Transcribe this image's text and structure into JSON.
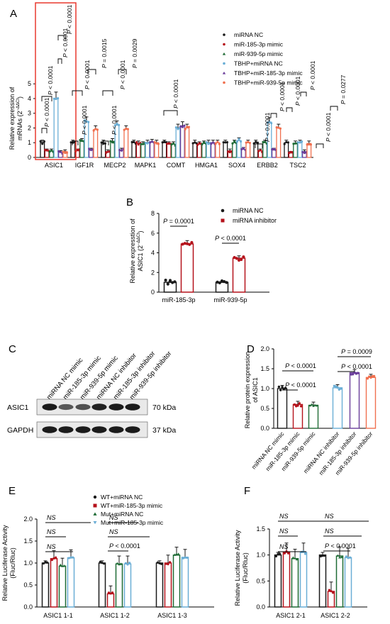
{
  "colors": {
    "black": "#1a1a1a",
    "red": "#b5121b",
    "green": "#1e6b35",
    "blue": "#6aaed6",
    "purple": "#6a3d9a",
    "orange": "#f0704f",
    "blotbg": "#e9e9e9",
    "band": "#1b1b1b",
    "highlight": "#e8392f"
  },
  "chart_data": [
    {
      "panel": "A",
      "type": "bar",
      "ylabel_line1": "Relative expression of",
      "ylabel_line2": "mRNAs (2",
      "ylabel_sup": "−ΔΔCt",
      "ylabel_close": ")",
      "ylim": [
        0,
        6
      ],
      "yticks": [
        "0",
        "1",
        "2",
        "3",
        "4",
        "5"
      ],
      "categories": [
        "ASIC1",
        "IGF1R",
        "MECP2",
        "MAPK1",
        "COMT",
        "HMGA1",
        "SOX4",
        "ERBB2",
        "TSC2"
      ],
      "series": [
        {
          "name": "miRNA NC",
          "values": [
            1,
            1,
            1,
            1,
            1,
            1,
            1,
            1,
            1
          ]
        },
        {
          "name": "miR-185-3p mimic",
          "values": [
            0.45,
            0.45,
            0.4,
            0.95,
            0.9,
            0.9,
            0.45,
            0.45,
            0.3
          ]
        },
        {
          "name": "miR-939-5p mimic",
          "values": [
            0.45,
            1.1,
            1.1,
            0.9,
            0.9,
            0.95,
            1.0,
            1.0,
            0.95
          ]
        },
        {
          "name": "TBHP+miRNA NC",
          "values": [
            4.0,
            2.45,
            2.2,
            1.0,
            2.0,
            1.0,
            1.15,
            2.4,
            1.0
          ]
        },
        {
          "name": "TBHP+miR-185-3p mimic",
          "values": [
            0.35,
            0.5,
            0.5,
            1.05,
            2.15,
            1.0,
            0.55,
            0.5,
            0.4
          ]
        },
        {
          "name": "TBHP+miR-939-5p mimic",
          "values": [
            0.4,
            1.9,
            1.9,
            1.0,
            2.0,
            1.0,
            1.0,
            2.0,
            0.95
          ]
        }
      ],
      "annotations": [
        {
          "group": 0,
          "labels": [
            "P < 0.0001",
            "P < 0.0001",
            "P < 0.0001",
            "P < 0.0001"
          ]
        },
        {
          "group": 1,
          "labels": [
            "P < 0.0001",
            "P < 0.0001",
            "P = 0.0015"
          ]
        },
        {
          "group": 2,
          "labels": [
            "P < 0.0001",
            "P < 0.0001",
            "P = 0.0029"
          ]
        },
        {
          "group": 4,
          "labels": [
            "P < 0.0001"
          ]
        },
        {
          "group": 6,
          "labels": [
            "P < 0.0001",
            "P < 0.0001"
          ]
        },
        {
          "group": 7,
          "labels": [
            "P < 0.0001",
            "P < 0.0001"
          ]
        },
        {
          "group": 8,
          "labels": [
            "P < 0.0001",
            "P = 0.0277"
          ]
        }
      ]
    },
    {
      "panel": "B",
      "type": "bar",
      "ylabel_line1": "Relative expresstion of",
      "ylabel_line2": "ASIC1 (2",
      "ylabel_sup": "−ΔΔCt",
      "ylabel_close": ")",
      "ylim": [
        0,
        8
      ],
      "yticks": [
        "0",
        "2",
        "4",
        "6",
        "8"
      ],
      "categories": [
        "miR-185-3p",
        "miR-939-5p"
      ],
      "series": [
        {
          "name": "miRNA NC",
          "values": [
            1.0,
            1.0
          ]
        },
        {
          "name": "miRNA inhibitor",
          "values": [
            4.9,
            3.45
          ]
        }
      ],
      "annotations": [
        "P = 0.0001",
        "P < 0.0001"
      ]
    },
    {
      "panel": "D",
      "type": "bar",
      "ylabel_line1": "Relative protein expression",
      "ylabel_line2": "of ASIC1",
      "ylim": [
        0,
        2.0
      ],
      "yticks": [
        "0.0",
        "0.5",
        "1.0",
        "1.5",
        "2.0"
      ],
      "categories": [
        "miRNA NC mimic",
        "miR-185-3p mimic",
        "miR-939-5p mimic",
        "miRNA NC inhibitor",
        "miR-185-3p inhibitor",
        "miR-939-5p inhibitor"
      ],
      "values": [
        1.0,
        0.6,
        0.58,
        1.02,
        1.4,
        1.28
      ],
      "annotations": [
        "P < 0.0001",
        "P < 0.0001",
        "P = 0.0009",
        "P < 0.0001"
      ]
    },
    {
      "panel": "E",
      "type": "bar",
      "ylabel_line1": "Relative Luciferase Activity",
      "ylabel_line2": "(Fluc/Rluc)",
      "ylim": [
        0,
        2.0
      ],
      "yticks": [
        "0.0",
        "0.5",
        "1.0",
        "1.5",
        "2.0"
      ],
      "categories": [
        "ASIC1 1-1",
        "ASIC1 1-2",
        "ASIC1 1-3"
      ],
      "series": [
        {
          "name": "WT+miRNA NC",
          "values": [
            1.0,
            1.0,
            1.0
          ]
        },
        {
          "name": "WT+miR-185-3p mimic",
          "values": [
            1.1,
            0.3,
            1.0
          ]
        },
        {
          "name": "Mut+miRNA NC",
          "values": [
            0.93,
            0.98,
            1.18
          ]
        },
        {
          "name": "Mut+miR-185-3p mimic",
          "values": [
            1.12,
            0.98,
            1.13
          ]
        }
      ],
      "annotations": [
        "NS",
        "NS",
        "NS",
        "NS",
        "P < 0.0001",
        "NS"
      ]
    },
    {
      "panel": "F",
      "type": "bar",
      "ylabel_line1": "Relative Luciferase Activity",
      "ylabel_line2": "(Fluc/Rluc)",
      "ylim": [
        0,
        1.5
      ],
      "yticks": [
        "0.0",
        "0.5",
        "1.0",
        "1.5"
      ],
      "categories": [
        "ASIC1 2-1",
        "ASIC1 2-2"
      ],
      "series": [
        {
          "name": "WT+miRNA NC",
          "values": [
            1.0,
            1.0
          ]
        },
        {
          "name": "WT+miR-185-3p mimic",
          "values": [
            1.05,
            0.3
          ]
        },
        {
          "name": "Mut+miRNA NC",
          "values": [
            0.93,
            0.98
          ]
        },
        {
          "name": "Mut+miR-185-3p mimic",
          "values": [
            1.05,
            0.95
          ]
        }
      ],
      "annotations": [
        "NS",
        "NS",
        "NS",
        "NS",
        "P < 0.0001",
        "NS"
      ]
    }
  ],
  "blot": {
    "panel": "C",
    "lanes": [
      "miRNA NC mimic",
      "miR-185-3p mimic",
      "miR-939-5p mimic",
      "miRNA NC inhibitor",
      "miR-185-3p inhibitor",
      "miR-939-5p inhibitor"
    ],
    "rows": [
      {
        "name": "ASIC1",
        "kda": "70 kDa",
        "intensity": [
          1,
          0.55,
          0.6,
          0.95,
          1,
          1
        ]
      },
      {
        "name": "GAPDH",
        "kda": "37 kDa",
        "intensity": [
          1,
          1,
          1,
          1,
          1,
          1
        ]
      }
    ]
  }
}
